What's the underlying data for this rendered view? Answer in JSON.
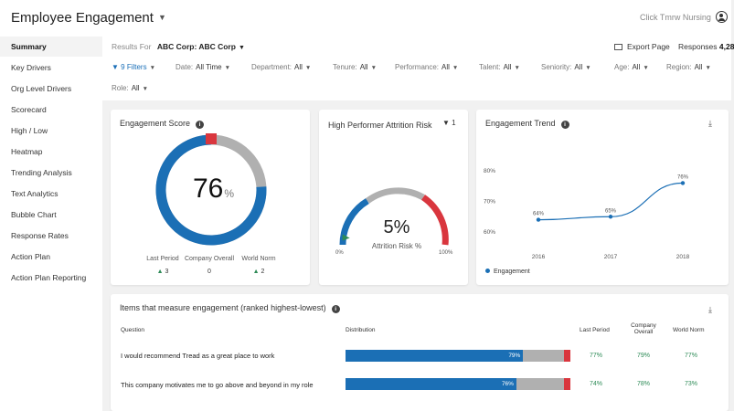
{
  "app": {
    "title": "Employee Engagement",
    "top_right_link": "Click Tmrw Nursing"
  },
  "sidebar": {
    "items": [
      {
        "label": "Summary"
      },
      {
        "label": "Key Drivers"
      },
      {
        "label": "Org Level Drivers"
      },
      {
        "label": "Scorecard"
      },
      {
        "label": "High / Low"
      },
      {
        "label": "Heatmap"
      },
      {
        "label": "Trending Analysis"
      },
      {
        "label": "Text Analytics"
      },
      {
        "label": "Bubble Chart"
      },
      {
        "label": "Response Rates"
      },
      {
        "label": "Action Plan"
      },
      {
        "label": "Action Plan Reporting"
      }
    ]
  },
  "header": {
    "results_for_label": "Results For",
    "results_for_value": "ABC Corp: ABC Corp",
    "export_label": "Export Page",
    "responses_label": "Responses",
    "responses_value": "4,28"
  },
  "filters": [
    {
      "label": "9 Filters",
      "value": ""
    },
    {
      "label": "Date:",
      "value": "All Time"
    },
    {
      "label": "Department:",
      "value": "All"
    },
    {
      "label": "Tenure:",
      "value": "All"
    },
    {
      "label": "Performance:",
      "value": "All"
    },
    {
      "label": "Talent:",
      "value": "All"
    },
    {
      "label": "Seniority:",
      "value": "All"
    },
    {
      "label": "Age:",
      "value": "All"
    },
    {
      "label": "Region:",
      "value": "All"
    },
    {
      "label": "Role:",
      "value": "All"
    }
  ],
  "engagement_score": {
    "title": "Engagement Score",
    "score": "76",
    "unit": "%",
    "score_fraction": 0.76,
    "comparisons": [
      {
        "label": "Last Period",
        "value": "3",
        "trend": "up"
      },
      {
        "label": "Company Overall",
        "value": "0",
        "trend": "none"
      },
      {
        "label": "World Norm",
        "value": "2",
        "trend": "up"
      }
    ]
  },
  "attrition": {
    "title": "High Performer Attrition Risk",
    "filter_count": "1",
    "value": "5%",
    "label": "Attrition Risk %",
    "min_label": "0%",
    "max_label": "100%",
    "value_fraction": 0.05
  },
  "trend": {
    "title": "Engagement Trend",
    "legend": "Engagement"
  },
  "chart_data": {
    "type": "line",
    "x": [
      "2016",
      "2017",
      "2018"
    ],
    "series": [
      {
        "name": "Engagement",
        "values": [
          64,
          65,
          76
        ]
      }
    ],
    "data_labels": [
      "64%",
      "65%",
      "76%"
    ],
    "y_ticks": [
      "80%",
      "70%",
      "60%"
    ],
    "ylim": [
      60,
      80
    ],
    "legend_position": "bottom-left",
    "grid": false
  },
  "items_table": {
    "title": "Items that measure engagement (ranked highest-lowest)",
    "headers": {
      "question": "Question",
      "distribution": "Distribution",
      "last_period": "Last Period",
      "company": "Company Overall",
      "world": "World Norm"
    },
    "rows": [
      {
        "question": "I would recommend Tread as a great place to work",
        "favorable": 79,
        "favorable_label": "79%",
        "neutral": 18,
        "unfavorable": 3,
        "last_period": "77%",
        "company": "79%",
        "world": "77%"
      },
      {
        "question": "This company motivates me to go above and beyond in my role",
        "favorable": 76,
        "favorable_label": "76%",
        "neutral": 21,
        "unfavorable": 3,
        "last_period": "74%",
        "company": "78%",
        "world": "73%"
      }
    ]
  },
  "colors": {
    "blue": "#1b6fb5",
    "gray": "#b0b0b0",
    "red": "#d9363e",
    "green": "#2e8b57"
  }
}
